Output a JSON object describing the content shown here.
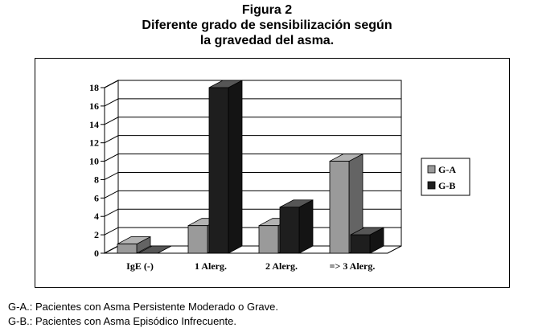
{
  "figure": {
    "title_line1": "Figura 2",
    "title_line2": "Diferente grado de sensibilización según",
    "title_line3": "la gravedad del asma."
  },
  "footnotes": {
    "ga": "G-A.: Pacientes con Asma Persistente Moderado o Grave.",
    "gb": "G-B.: Pacientes con Asma Episódico Infrecuente."
  },
  "chart_data": {
    "type": "bar",
    "title": "",
    "xlabel": "",
    "ylabel": "",
    "categories": [
      "IgE (-)",
      "1 Alerg.",
      "2 Alerg.",
      "=> 3 Alerg."
    ],
    "series": [
      {
        "name": "G-A",
        "values": [
          1,
          3,
          3,
          10
        ],
        "color": "#9a9a9a"
      },
      {
        "name": "G-B",
        "values": [
          0,
          18,
          5,
          2
        ],
        "color": "#1e1e1e"
      }
    ],
    "ylim": [
      0,
      18
    ],
    "yticks": [
      0,
      2,
      4,
      6,
      8,
      10,
      12,
      14,
      16,
      18
    ],
    "grid": true,
    "legend_position": "right",
    "style": "3d-bar"
  }
}
